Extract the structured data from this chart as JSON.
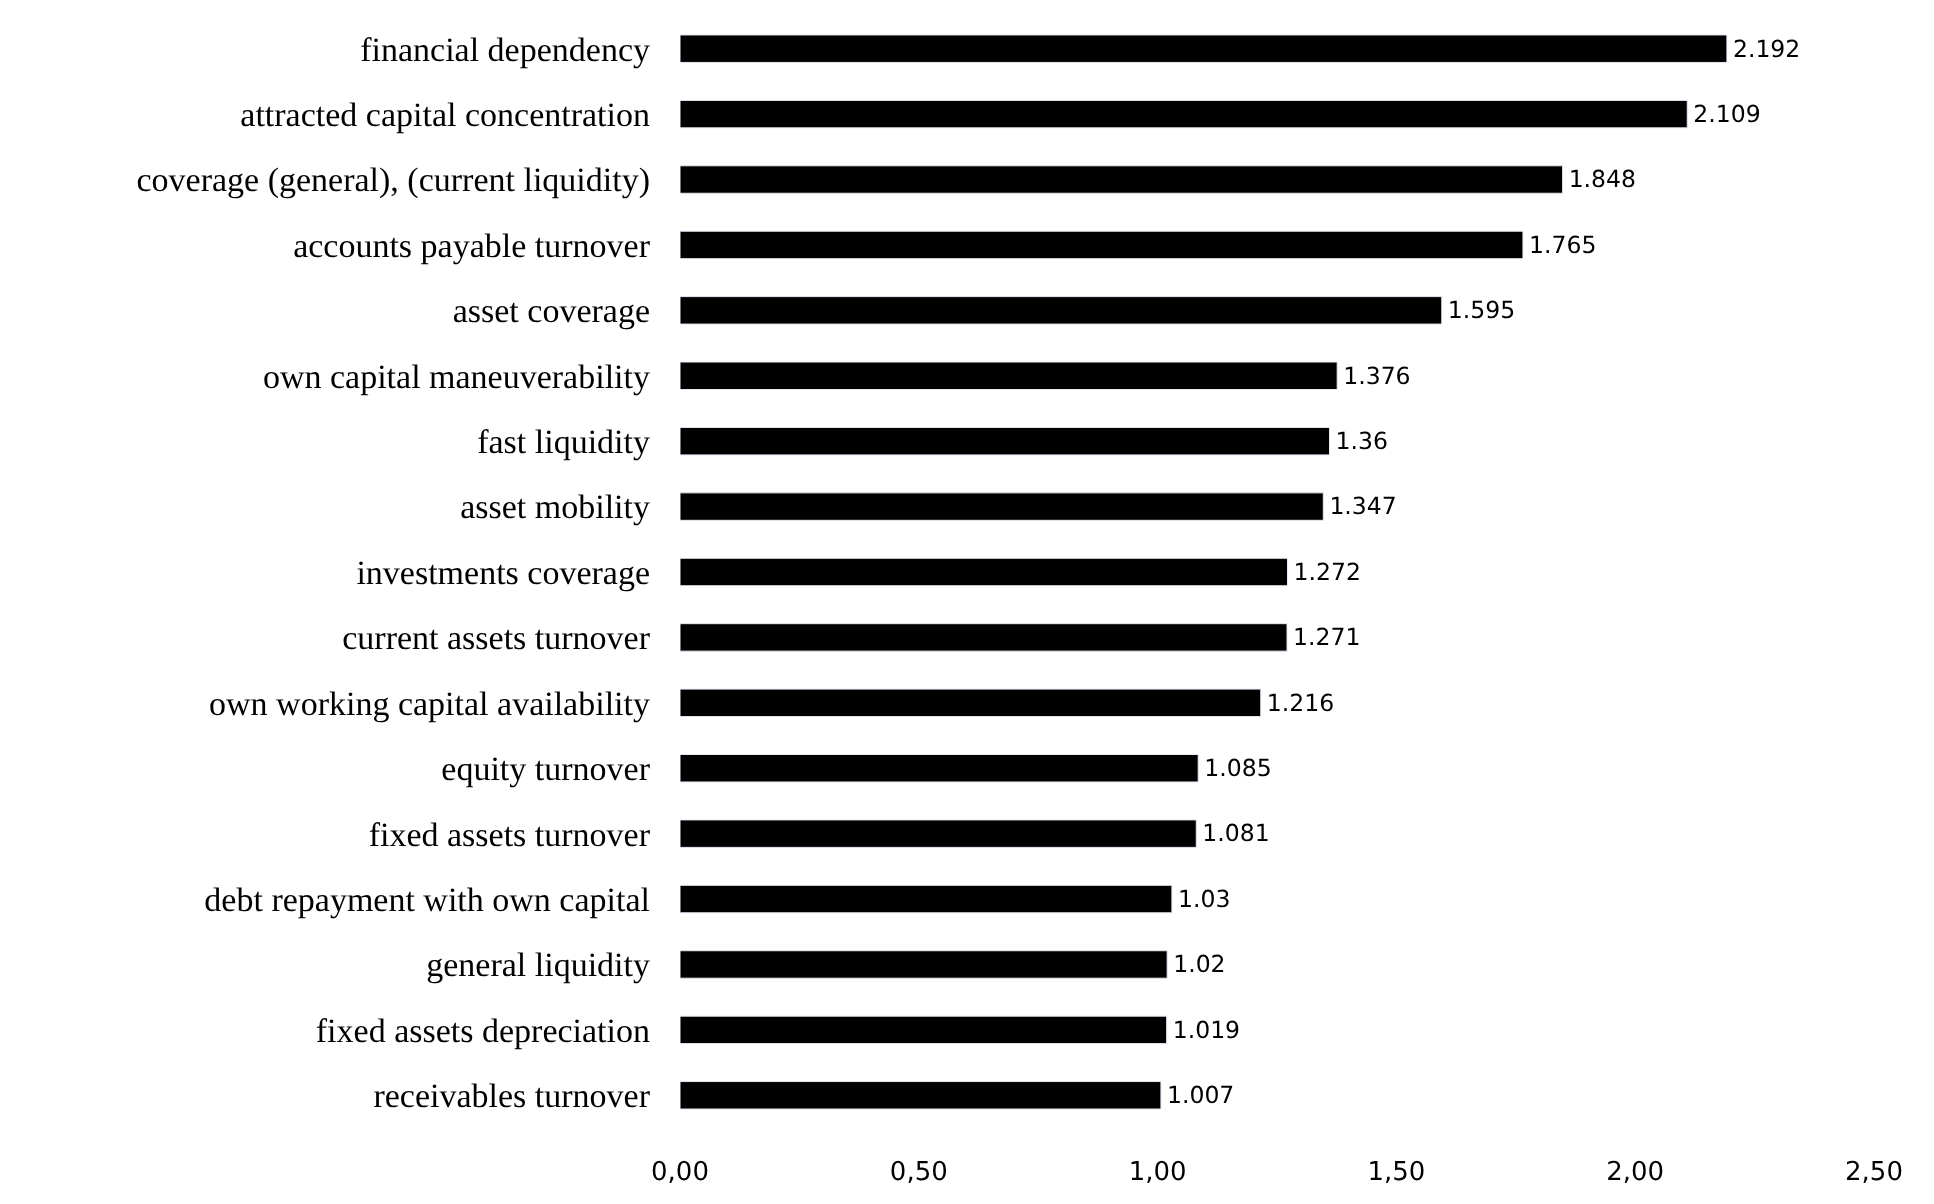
{
  "chart_data": {
    "type": "bar",
    "orientation": "horizontal",
    "categories": [
      "financial dependency",
      "attracted capital concentration",
      "coverage (general), (current liquidity)",
      "accounts payable turnover",
      "asset coverage",
      "own capital maneuverability",
      "fast liquidity",
      "asset mobility",
      "investments coverage",
      "current assets turnover",
      "own working capital availability",
      "equity turnover",
      "fixed assets turnover",
      "debt repayment with own capital",
      "general liquidity",
      "fixed assets depreciation",
      "receivables turnover"
    ],
    "values": [
      2.192,
      2.109,
      1.848,
      1.765,
      1.595,
      1.376,
      1.36,
      1.347,
      1.272,
      1.271,
      1.216,
      1.085,
      1.081,
      1.03,
      1.02,
      1.019,
      1.007
    ],
    "color": "#000000",
    "xlim": [
      0,
      2.5
    ],
    "xticks": [
      {
        "value": 0,
        "label": "0,00"
      },
      {
        "value": 0.5,
        "label": "0,50"
      },
      {
        "value": 1,
        "label": "1,00"
      },
      {
        "value": 1.5,
        "label": "1,50"
      },
      {
        "value": 2,
        "label": "2,00"
      },
      {
        "value": 2.5,
        "label": "2,50"
      }
    ],
    "data_labels": true
  }
}
